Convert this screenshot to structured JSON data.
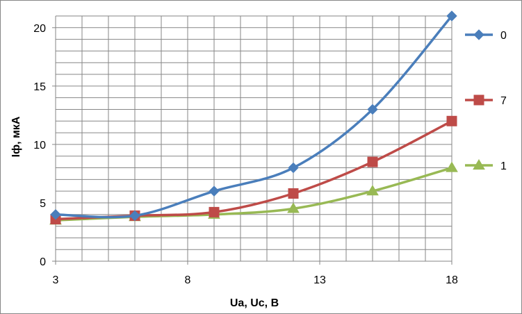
{
  "chart_data": {
    "type": "line",
    "xlabel": "Ua, Uc, B",
    "ylabel": "Iф, мкА",
    "xlim": [
      3,
      18
    ],
    "ylim": [
      0,
      21
    ],
    "x_ticks": [
      3,
      8,
      13,
      18
    ],
    "y_ticks": [
      0,
      5,
      10,
      15,
      20
    ],
    "x_minor_step": 1,
    "y_minor_step": 1,
    "grid": true,
    "legend_position": "right",
    "x": [
      3,
      6,
      9,
      12,
      15,
      18
    ],
    "series": [
      {
        "name": "0",
        "values": [
          4.0,
          3.9,
          6.0,
          8.0,
          13.0,
          21.0
        ],
        "color": "#4a7ebb",
        "marker": "diamond"
      },
      {
        "name": "7",
        "values": [
          3.6,
          3.9,
          4.2,
          5.8,
          8.5,
          12.0
        ],
        "color": "#be4b48",
        "marker": "square"
      },
      {
        "name": "1",
        "values": [
          3.5,
          3.8,
          4.0,
          4.5,
          6.0,
          8.0
        ],
        "color": "#98b954",
        "marker": "triangle"
      }
    ]
  }
}
